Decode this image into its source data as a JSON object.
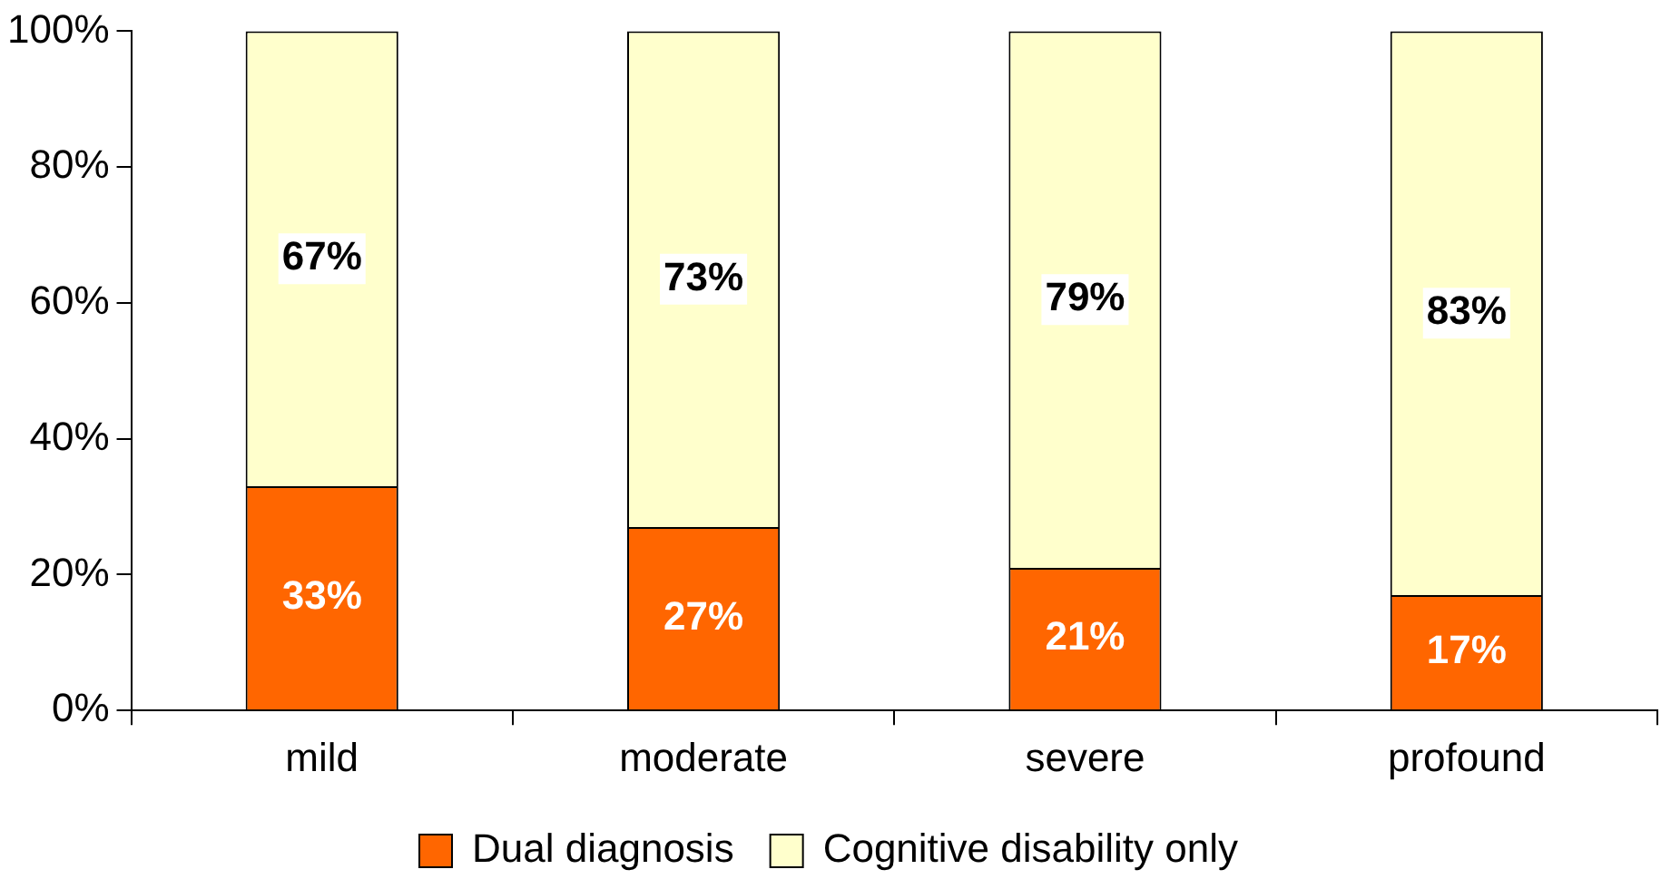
{
  "chart_data": {
    "type": "bar",
    "stacked": true,
    "categories": [
      "mild",
      "moderate",
      "severe",
      "profound"
    ],
    "series": [
      {
        "name": "Dual diagnosis",
        "color": "#ff6600",
        "values": [
          33,
          27,
          21,
          17
        ],
        "value_labels": [
          "33%",
          "27%",
          "21%",
          "17%"
        ]
      },
      {
        "name": "Cognitive disability only",
        "color": "#ffffcc",
        "values": [
          67,
          73,
          79,
          83
        ],
        "value_labels": [
          "67%",
          "73%",
          "79%",
          "83%"
        ]
      }
    ],
    "ylim": [
      0,
      100
    ],
    "yticks": [
      {
        "value": 0,
        "label": "0%"
      },
      {
        "value": 20,
        "label": "20%"
      },
      {
        "value": 40,
        "label": "40%"
      },
      {
        "value": 60,
        "label": "60%"
      },
      {
        "value": 80,
        "label": "80%"
      },
      {
        "value": 100,
        "label": "100%"
      }
    ],
    "grid": false,
    "legend": "bottom"
  }
}
